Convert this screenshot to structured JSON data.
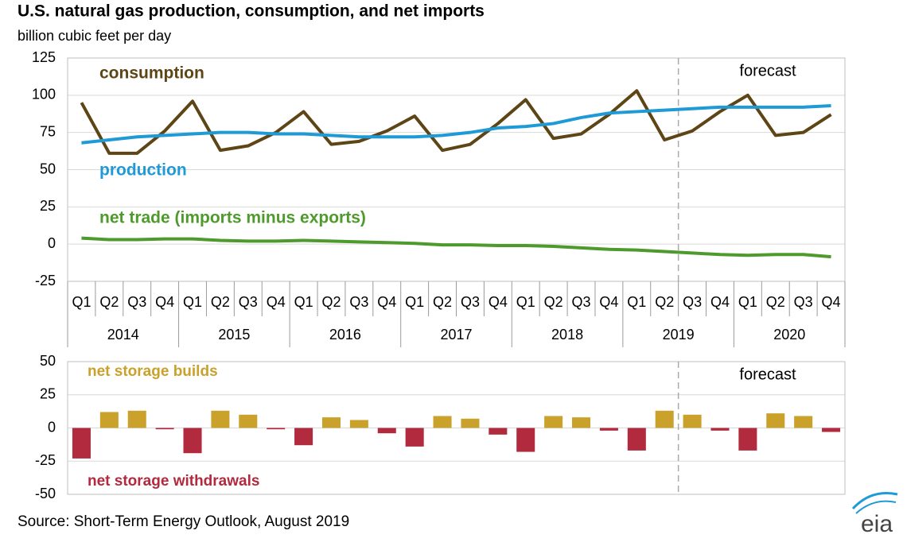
{
  "title": "U.S. natural gas production, consumption, and net imports",
  "subtitle": "billion cubic feet per day",
  "source": "Source: Short-Term Energy Outlook, August 2019",
  "logo": "eia",
  "chart_data": [
    {
      "type": "line",
      "categories": [
        "Q1",
        "Q2",
        "Q3",
        "Q4",
        "Q1",
        "Q2",
        "Q3",
        "Q4",
        "Q1",
        "Q2",
        "Q3",
        "Q4",
        "Q1",
        "Q2",
        "Q3",
        "Q4",
        "Q1",
        "Q2",
        "Q3",
        "Q4",
        "Q1",
        "Q2",
        "Q3",
        "Q4",
        "Q1",
        "Q2",
        "Q3",
        "Q4"
      ],
      "x_groups": [
        "2014",
        "2015",
        "2016",
        "2017",
        "2018",
        "2019",
        "2020"
      ],
      "series": [
        {
          "name": "consumption",
          "color": "#5e4515",
          "values": [
            95,
            61,
            61,
            76,
            96,
            63,
            66,
            75,
            89,
            67,
            69,
            76,
            86,
            63,
            67,
            81,
            97,
            71,
            74,
            87,
            103,
            70,
            76,
            89,
            100,
            73,
            75,
            87
          ]
        },
        {
          "name": "production",
          "color": "#1e9ad6",
          "values": [
            68,
            70,
            72,
            73,
            74,
            75,
            75,
            74,
            74,
            73,
            72,
            72,
            72,
            73,
            75,
            78,
            79,
            81,
            85,
            88,
            89,
            90,
            91,
            92,
            92,
            92,
            92,
            93
          ]
        },
        {
          "name": "net trade (imports minus exports)",
          "color": "#4e9a2c",
          "values": [
            4,
            3,
            3,
            3.5,
            3.5,
            2.5,
            2,
            2,
            2.5,
            2,
            1.5,
            1,
            0.5,
            -0.5,
            -0.5,
            -1,
            -1,
            -1.5,
            -2.5,
            -3.5,
            -4,
            -5,
            -6,
            -7,
            -7.5,
            -7,
            -7,
            -8.5
          ]
        }
      ],
      "ylim": [
        -25,
        125
      ],
      "yticks": [
        -25,
        0,
        25,
        50,
        75,
        100,
        125
      ],
      "grid": true,
      "forecast_label": "forecast",
      "forecast_start": 22
    },
    {
      "type": "bar",
      "values": [
        -23,
        12,
        13,
        -1,
        -19,
        13,
        10,
        -1,
        -13,
        8,
        6,
        -4,
        -14,
        9,
        7,
        -5,
        -18,
        9,
        8,
        -2,
        -17,
        13,
        10,
        -2,
        -17,
        11,
        9,
        -3
      ],
      "positive_label": "net storage builds",
      "positive_color": "#c9a12b",
      "negative_label": "net storage withdrawals",
      "negative_color": "#b22a3e",
      "ylim": [
        -50,
        50
      ],
      "yticks": [
        -50,
        -25,
        0,
        25,
        50
      ],
      "grid": true,
      "forecast_label": "forecast",
      "forecast_start": 22
    }
  ]
}
